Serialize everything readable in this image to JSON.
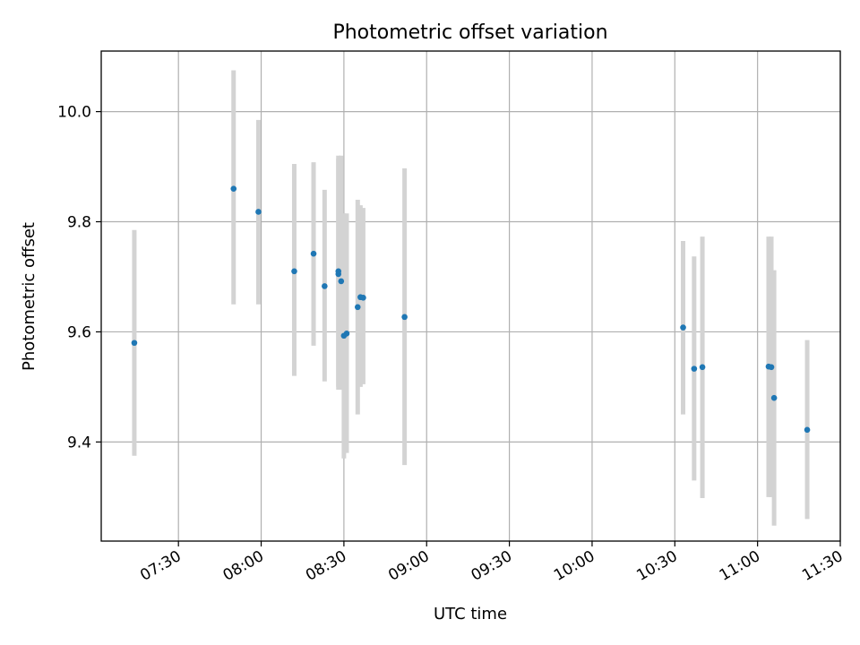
{
  "chart_data": {
    "type": "scatter",
    "title": "Photometric offset variation",
    "xlabel": "UTC time",
    "ylabel": "Photometric offset",
    "xlim": [
      "07:02",
      "11:30"
    ],
    "ylim": [
      9.22,
      10.11
    ],
    "x_ticks": [
      "07:30",
      "08:00",
      "08:30",
      "09:00",
      "09:30",
      "10:00",
      "10:30",
      "11:00",
      "11:30"
    ],
    "y_ticks": [
      9.4,
      9.6,
      9.8,
      10.0
    ],
    "grid": true,
    "colors": {
      "point": "#1f77b4",
      "errorbar": "#d3d3d3"
    },
    "points": [
      {
        "x": "07:14",
        "y": 9.58,
        "err_low": 9.375,
        "err_high": 9.785
      },
      {
        "x": "07:50",
        "y": 9.86,
        "err_low": 9.65,
        "err_high": 10.075
      },
      {
        "x": "07:59",
        "y": 9.818,
        "err_low": 9.65,
        "err_high": 9.985
      },
      {
        "x": "08:12",
        "y": 9.71,
        "err_low": 9.52,
        "err_high": 9.905
      },
      {
        "x": "08:19",
        "y": 9.742,
        "err_low": 9.575,
        "err_high": 9.908
      },
      {
        "x": "08:23",
        "y": 9.683,
        "err_low": 9.51,
        "err_high": 9.858
      },
      {
        "x": "08:28",
        "y": 9.705,
        "err_low": 9.5,
        "err_high": 9.915
      },
      {
        "x": "08:28",
        "y": 9.71,
        "err_low": 9.495,
        "err_high": 9.92
      },
      {
        "x": "08:29",
        "y": 9.692,
        "err_low": 9.495,
        "err_high": 9.92
      },
      {
        "x": "08:30",
        "y": 9.593,
        "err_low": 9.37,
        "err_high": 9.815
      },
      {
        "x": "08:31",
        "y": 9.597,
        "err_low": 9.38,
        "err_high": 9.815
      },
      {
        "x": "08:35",
        "y": 9.645,
        "err_low": 9.45,
        "err_high": 9.84
      },
      {
        "x": "08:36",
        "y": 9.663,
        "err_low": 9.5,
        "err_high": 9.83
      },
      {
        "x": "08:37",
        "y": 9.662,
        "err_low": 9.505,
        "err_high": 9.825
      },
      {
        "x": "08:52",
        "y": 9.627,
        "err_low": 9.358,
        "err_high": 9.897
      },
      {
        "x": "10:33",
        "y": 9.608,
        "err_low": 9.45,
        "err_high": 9.765
      },
      {
        "x": "10:37",
        "y": 9.533,
        "err_low": 9.33,
        "err_high": 9.737
      },
      {
        "x": "10:40",
        "y": 9.536,
        "err_low": 9.298,
        "err_high": 9.773
      },
      {
        "x": "11:04",
        "y": 9.537,
        "err_low": 9.3,
        "err_high": 9.773
      },
      {
        "x": "11:05",
        "y": 9.536,
        "err_low": 9.3,
        "err_high": 9.773
      },
      {
        "x": "11:06",
        "y": 9.48,
        "err_low": 9.248,
        "err_high": 9.712
      },
      {
        "x": "11:18",
        "y": 9.422,
        "err_low": 9.26,
        "err_high": 9.585
      }
    ]
  }
}
